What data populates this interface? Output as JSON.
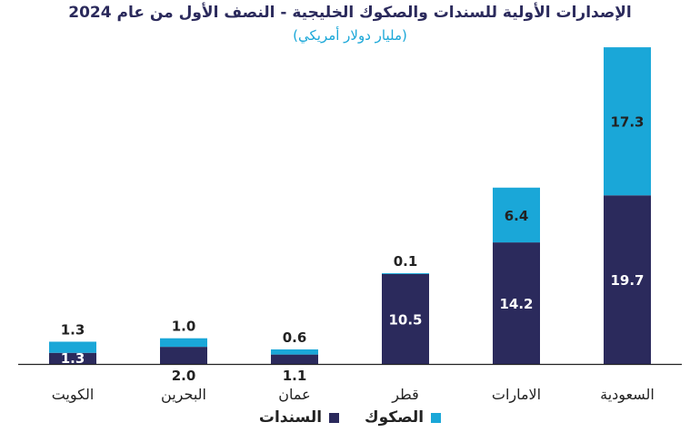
{
  "chart_data": {
    "type": "bar",
    "stacked": true,
    "title": "الإصدارات الأولية للسندات والصكوك الخليجية - النصف الأول من عام 2024",
    "subtitle": "(مليار دولار أمريكي)",
    "categories": [
      "الكويت",
      "البحرين",
      "عمان",
      "قطر",
      "الامارات",
      "السعودية"
    ],
    "series": [
      {
        "name": "السندات",
        "color": "#2b2a5c",
        "values": [
          1.3,
          2.0,
          1.1,
          10.5,
          14.2,
          19.7
        ]
      },
      {
        "name": "الصكوك",
        "color": "#1aa7d8",
        "values": [
          1.3,
          1.0,
          0.6,
          0.1,
          6.4,
          17.3
        ]
      }
    ],
    "legend_position": "bottom",
    "grid": false
  }
}
